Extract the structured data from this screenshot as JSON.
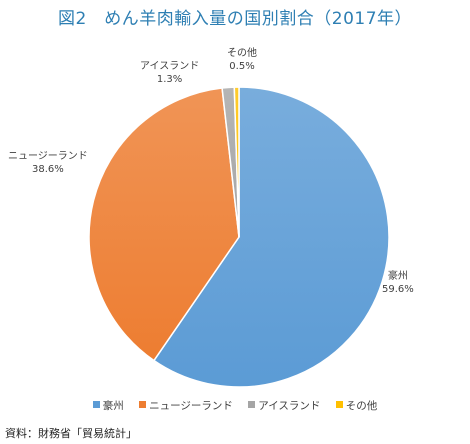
{
  "title": "図2　めん羊肉輸入量の国別割合（2017年）",
  "source": "資料：財務省「貿易統計」",
  "chart_data": {
    "type": "pie",
    "start_angle_deg": 0,
    "direction": "clockwise",
    "legend_position": "bottom",
    "slices": [
      {
        "name": "豪州",
        "value": 59.6,
        "label": "59.6%",
        "color": "#5b9bd5"
      },
      {
        "name": "ニュージーランド",
        "value": 38.6,
        "label": "38.6%",
        "color": "#ed7d31"
      },
      {
        "name": "アイスランド",
        "value": 1.3,
        "label": "1.3%",
        "color": "#a5a5a5"
      },
      {
        "name": "その他",
        "value": 0.5,
        "label": "0.5%",
        "color": "#ffc000"
      }
    ]
  }
}
